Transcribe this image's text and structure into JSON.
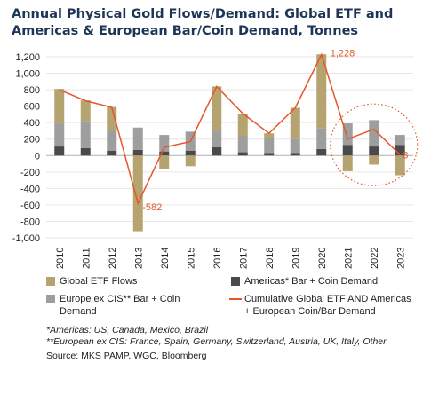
{
  "title": "Annual Physical Gold Flows/Demand: Global ETF and Americas & European Bar/Coin Demand, Tonnes",
  "colors": {
    "title": "#1d3557",
    "etf": "#b5a46f",
    "europe": "#9e9e9e",
    "americas": "#4a4a4a",
    "line": "#e3572b",
    "grid": "#e6e6e6"
  },
  "chart_data": {
    "type": "bar",
    "stacked": true,
    "title": "Annual Physical Gold Flows/Demand: Global ETF and Americas & European Bar/Coin Demand, Tonnes",
    "xlabel": "",
    "ylabel": "",
    "ylim": [
      -1000,
      1200
    ],
    "yticks": [
      1200,
      1000,
      800,
      600,
      400,
      200,
      0,
      -200,
      -400,
      -600,
      -800,
      -1000
    ],
    "ytick_labels": [
      "1,200",
      "1,000",
      "800",
      "600",
      "400",
      "200",
      "0",
      "-200",
      "-400",
      "-600",
      "-800",
      "-1,000"
    ],
    "grid": true,
    "categories": [
      "2010",
      "2011",
      "2012",
      "2013",
      "2014",
      "2015",
      "2016",
      "2017",
      "2018",
      "2019",
      "2020",
      "2021",
      "2022",
      "2023"
    ],
    "series": [
      {
        "name": "Americas* Bar + Coin Demand",
        "kind": "bar",
        "values": [
          110,
          90,
          60,
          70,
          50,
          60,
          100,
          40,
          30,
          30,
          80,
          130,
          110,
          130
        ]
      },
      {
        "name": "Europe ex CIS** Bar + Coin Demand",
        "kind": "bar",
        "values": [
          280,
          330,
          240,
          270,
          200,
          230,
          200,
          200,
          180,
          170,
          250,
          260,
          320,
          120
        ]
      },
      {
        "name": "Global ETF Flows",
        "kind": "bar",
        "values": [
          420,
          250,
          290,
          -920,
          -160,
          -130,
          540,
          270,
          60,
          380,
          900,
          -190,
          -110,
          -240
        ]
      },
      {
        "name": "Cumulative Global ETF AND Americas + European Coin/Bar Demand",
        "kind": "line",
        "values": [
          800,
          665,
          585,
          -582,
          100,
          170,
          840,
          510,
          270,
          580,
          1228,
          200,
          320,
          8
        ]
      }
    ],
    "data_labels": [
      {
        "series": "Cumulative Global ETF AND Americas + European Coin/Bar Demand",
        "category": "2013",
        "text": "-582"
      },
      {
        "series": "Cumulative Global ETF AND Americas + European Coin/Bar Demand",
        "category": "2020",
        "text": "1,228"
      },
      {
        "series": "Cumulative Global ETF AND Americas + European Coin/Bar Demand",
        "category": "2023",
        "text": "8"
      }
    ],
    "highlight_circle_categories": [
      "2021",
      "2023"
    ]
  },
  "legend": {
    "etf": "Global ETF Flows",
    "americas": "Americas* Bar + Coin Demand",
    "europe_line1": "Europe ex CIS** Bar + Coin",
    "europe_line2": "Demand",
    "cumulative_line1": "Cumulative Global ETF AND Americas",
    "cumulative_line2": "+ European Coin/Bar Demand"
  },
  "notes": {
    "americas": "*Americas: US, Canada, Mexico, Brazil",
    "europe": "**European ex CIS: France, Spain, Germany, Switzerland, Austria, UK, Italy, Other"
  },
  "source": "Source: MKS PAMP, WGC, Bloomberg"
}
